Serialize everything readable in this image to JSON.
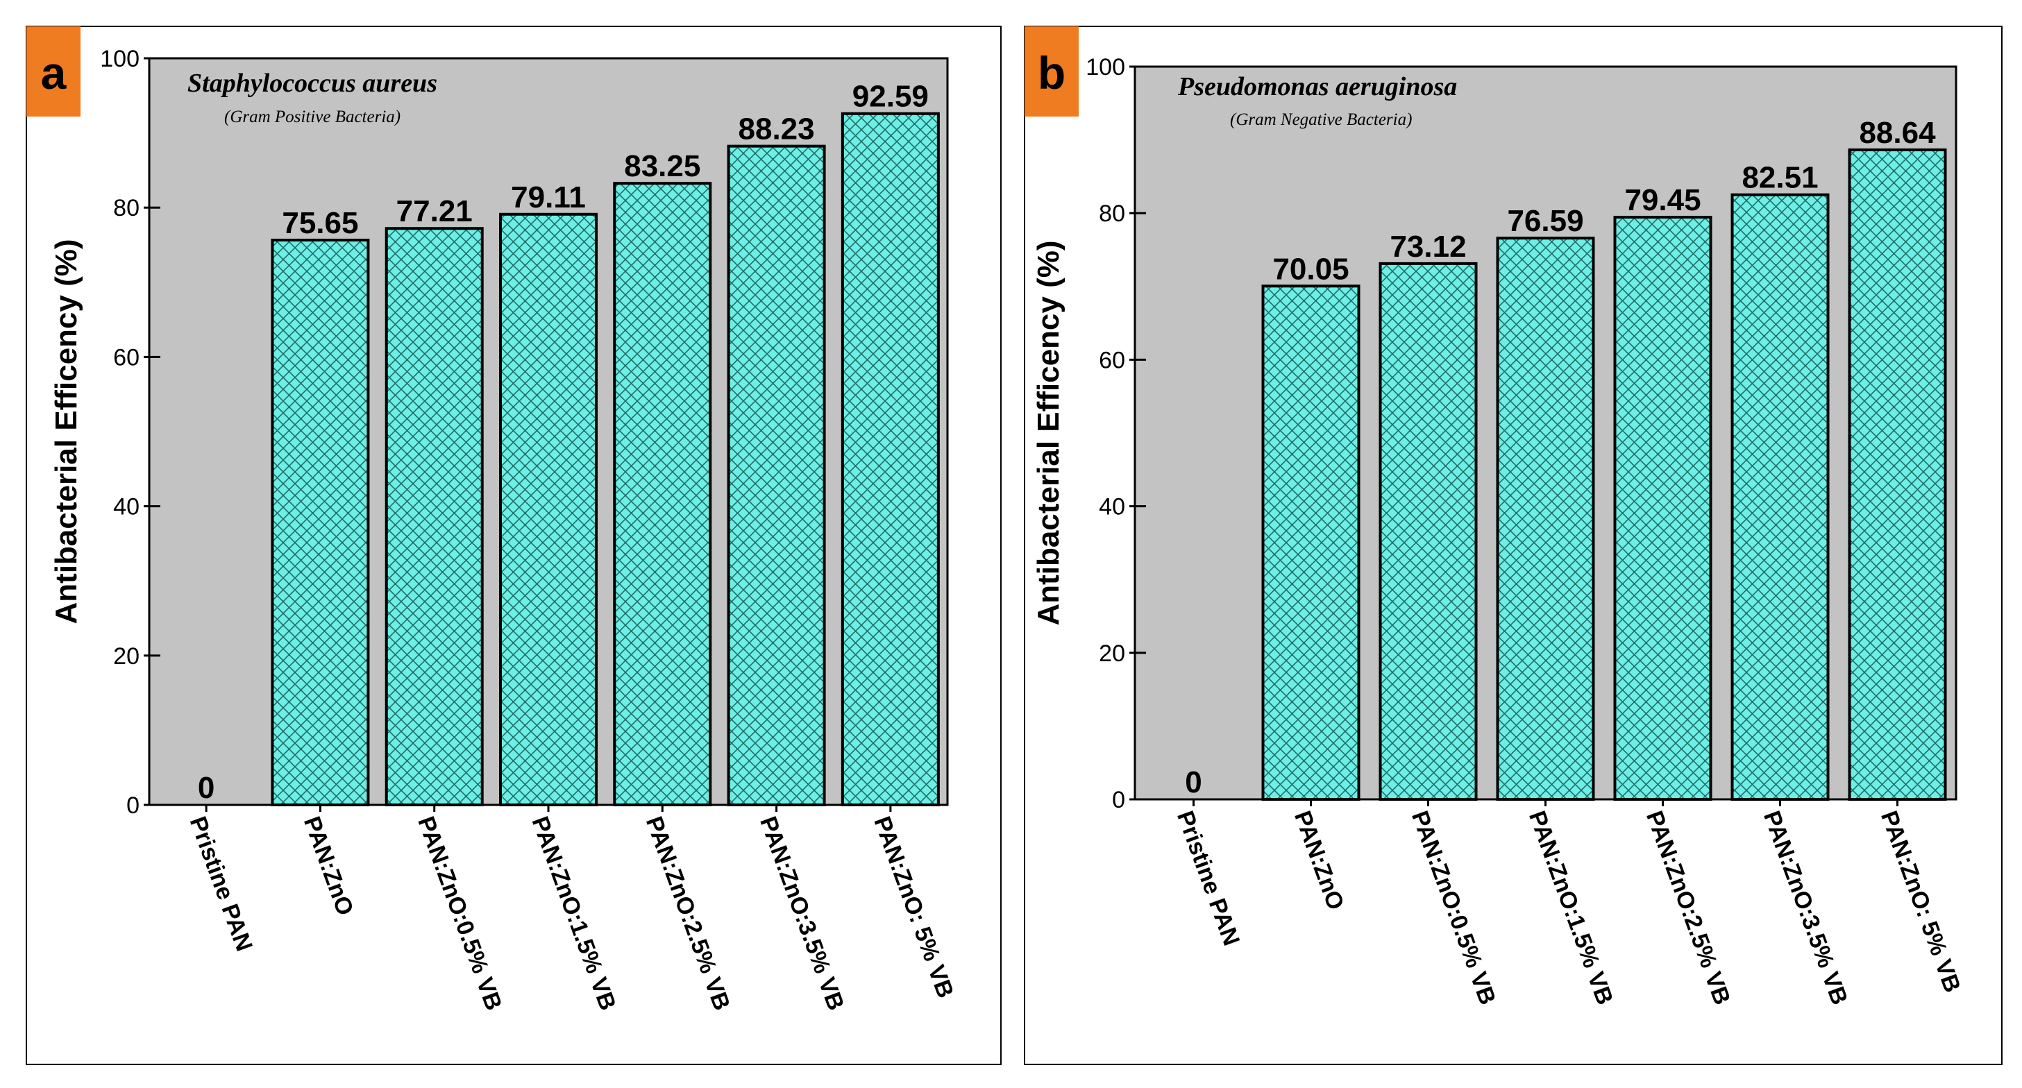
{
  "colors": {
    "plot_bg": "#c3c3c3",
    "bar_fill": "#6eeee4",
    "hatch": "#1d6f69",
    "badge": "#f07c21",
    "frame": "#000000"
  },
  "chart_data": [
    {
      "type": "bar",
      "panel_label": "a",
      "title": "Staphylococcus aureus",
      "subtitle": "(Gram Positive Bacteria)",
      "ylabel": "Antibacterial Efficency (%)",
      "xlabel": "",
      "ylim": [
        0,
        100
      ],
      "yticks": [
        "0",
        "20",
        "40",
        "60",
        "80",
        "100"
      ],
      "categories": [
        "Pristine PAN",
        "PAN:ZnO",
        "PAN:ZnO:0.5% VB",
        "PAN:ZnO:1.5% VB",
        "PAN:ZnO:2.5% VB",
        "PAN:ZnO:3.5% VB",
        "PAN:ZnO: 5% VB"
      ],
      "values": [
        0,
        75.65,
        77.21,
        79.11,
        83.25,
        88.23,
        92.59
      ],
      "value_labels": [
        "0",
        "75.65",
        "77.21",
        "79.11",
        "83.25",
        "88.23",
        "92.59"
      ]
    },
    {
      "type": "bar",
      "panel_label": "b",
      "title": "Pseudomonas aeruginosa",
      "subtitle": "(Gram Negative Bacteria)",
      "ylabel": "Antibacterial Efficency (%)",
      "xlabel": "",
      "ylim": [
        0,
        100
      ],
      "yticks": [
        "0",
        "20",
        "40",
        "60",
        "80",
        "100"
      ],
      "categories": [
        "Pristine PAN",
        "PAN:ZnO",
        "PAN:ZnO:0.5% VB",
        "PAN:ZnO:1.5% VB",
        "PAN:ZnO:2.5% VB",
        "PAN:ZnO:3.5% VB",
        "PAN:ZnO: 5% VB"
      ],
      "values": [
        0,
        70.05,
        73.12,
        76.59,
        79.45,
        82.51,
        88.64
      ],
      "value_labels": [
        "0",
        "70.05",
        "73.12",
        "76.59",
        "79.45",
        "82.51",
        "88.64"
      ]
    }
  ]
}
